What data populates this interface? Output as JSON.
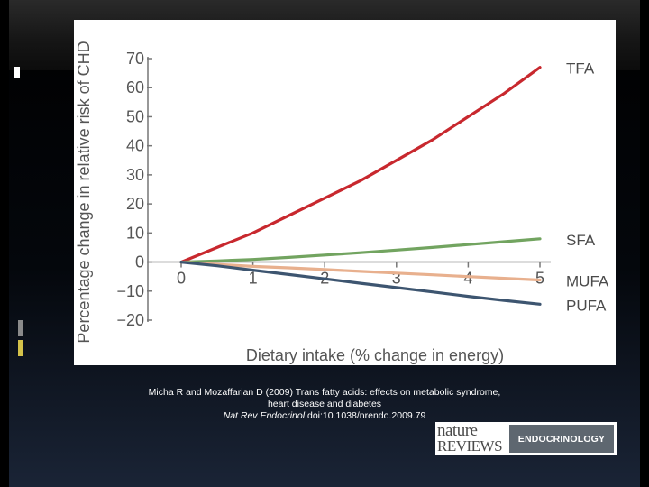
{
  "chart_data": {
    "type": "line",
    "title": "",
    "xlabel": "Dietary intake (% change in energy)",
    "ylabel": "Percentage change in relative risk of CHD",
    "xlim": [
      0,
      5
    ],
    "ylim": [
      -20,
      70
    ],
    "x_ticks": [
      0,
      1,
      2,
      3,
      4,
      5
    ],
    "y_ticks": [
      70,
      60,
      50,
      40,
      30,
      20,
      10,
      0,
      -10,
      -20
    ],
    "y_tick_labels": [
      "70",
      "60",
      "50",
      "40",
      "30",
      "20",
      "10",
      "0",
      "−10",
      "−20"
    ],
    "grid": false,
    "series": [
      {
        "name": "TFA",
        "color": "#c8282e",
        "x": [
          0,
          0.5,
          1,
          1.5,
          2,
          2.5,
          3,
          3.5,
          4,
          4.5,
          5
        ],
        "values": [
          0,
          5,
          10,
          16,
          22,
          28,
          35,
          42,
          50,
          58,
          67
        ]
      },
      {
        "name": "SFA",
        "color": "#72a460",
        "x": [
          0,
          0.5,
          1,
          1.5,
          2,
          2.5,
          3,
          3.5,
          4,
          4.5,
          5
        ],
        "values": [
          0,
          0.4,
          0.9,
          1.6,
          2.4,
          3.2,
          4.1,
          5.0,
          6.0,
          7.0,
          8.0
        ]
      },
      {
        "name": "MUFA",
        "color": "#e8b08e",
        "x": [
          0,
          0.5,
          1,
          1.5,
          2,
          2.5,
          3,
          3.5,
          4,
          4.5,
          5
        ],
        "values": [
          0,
          -0.8,
          -1.5,
          -2.0,
          -2.6,
          -3.2,
          -3.8,
          -4.4,
          -5.0,
          -5.6,
          -6.2
        ]
      },
      {
        "name": "PUFA",
        "color": "#3d5570",
        "x": [
          0,
          0.5,
          1,
          1.5,
          2,
          2.5,
          3,
          3.5,
          4,
          4.5,
          5
        ],
        "values": [
          0,
          -1.3,
          -2.8,
          -4.3,
          -5.8,
          -7.3,
          -8.8,
          -10.3,
          -11.8,
          -13.2,
          -14.5
        ]
      }
    ]
  },
  "citation": {
    "line1": "Micha R and Mozaffarian D (2009) Trans fatty acids: effects on metabolic syndrome,",
    "line2": "heart disease and diabetes",
    "journal": "Nat Rev Endocrinol",
    "doi": " doi:10.1038/nrendo.2009.79"
  },
  "logo": {
    "word1": "nature",
    "word2": "REVIEWS",
    "section": "ENDOCRINOLOGY"
  },
  "colors": {
    "accent_gray": "#7a7a7a",
    "accent_yellow": "#d4c24a",
    "axis": "#777777"
  }
}
